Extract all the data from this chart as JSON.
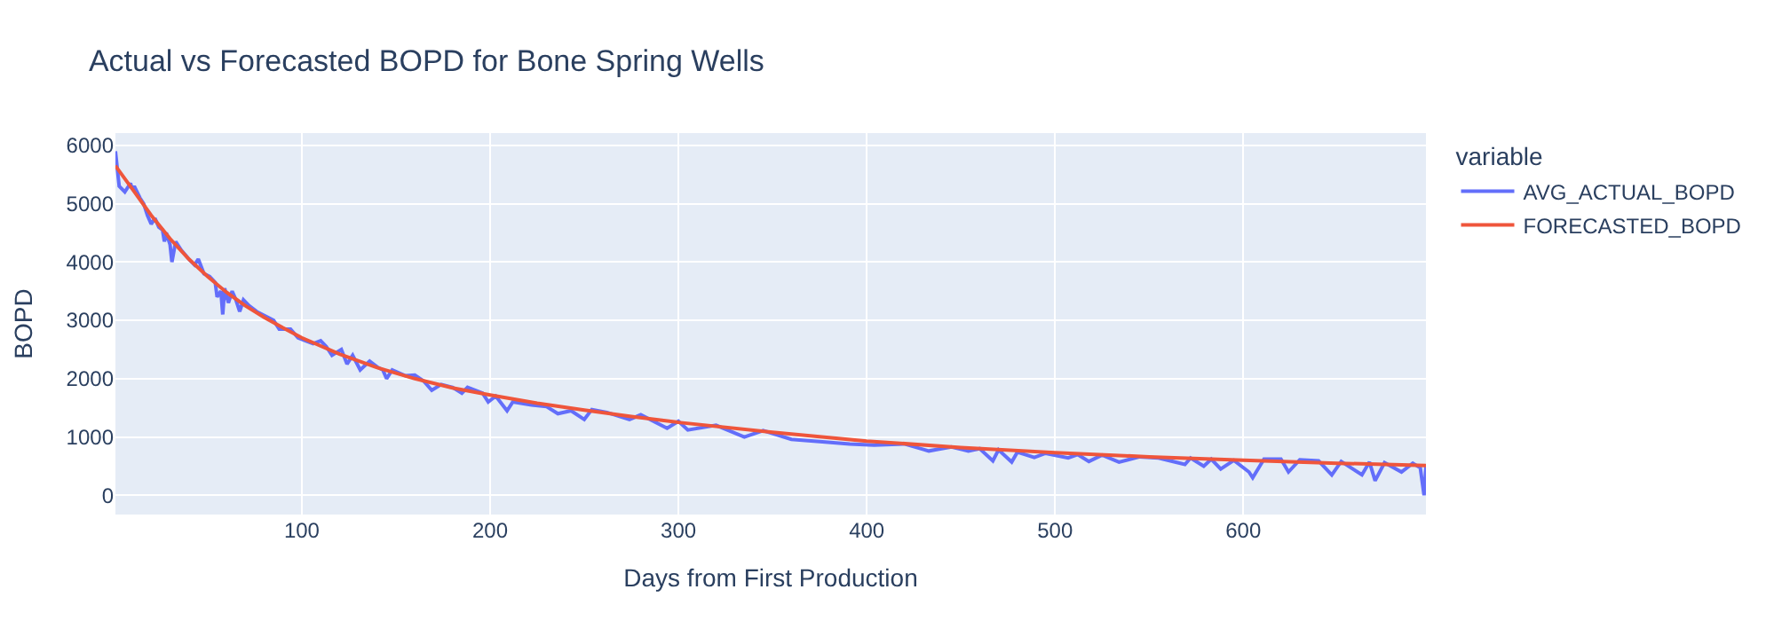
{
  "chart_data": {
    "type": "line",
    "title": "Actual vs Forecasted BOPD for Bone Spring Wells",
    "xlabel": "Days from First Production",
    "ylabel": "BOPD",
    "legend_title": "variable",
    "series": [
      {
        "name": "AVG_ACTUAL_BOPD",
        "color": "#636efa",
        "x": [
          1,
          3,
          6,
          9,
          10,
          11,
          14,
          16,
          18,
          20,
          22,
          24,
          26,
          27,
          28,
          30,
          31,
          33,
          36,
          40,
          43,
          45,
          48,
          51,
          54,
          55,
          57,
          58,
          59,
          61,
          63,
          65,
          67,
          69,
          72,
          76,
          79,
          85,
          88,
          94,
          98,
          102,
          106,
          110,
          113,
          116,
          121,
          124,
          127,
          131,
          136,
          140,
          143,
          145,
          148,
          155,
          160,
          165,
          169,
          174,
          180,
          185,
          188,
          196,
          199,
          203,
          209,
          212,
          222,
          230,
          236,
          243,
          250,
          254,
          262,
          274,
          280,
          294,
          300,
          305,
          320,
          335,
          345,
          360,
          375,
          391,
          404,
          420,
          433,
          445,
          454,
          460,
          467,
          470,
          477,
          480,
          489,
          495,
          507,
          512,
          518,
          525,
          534,
          545,
          555,
          569,
          572,
          579,
          583,
          588,
          595,
          603,
          605,
          611,
          620,
          624,
          630,
          640,
          647,
          652,
          663,
          667,
          670,
          675,
          684,
          690,
          694,
          696,
          697
        ],
        "values": [
          5900,
          5300,
          5200,
          5350,
          5250,
          5300,
          5100,
          5000,
          4800,
          4650,
          4750,
          4600,
          4550,
          4350,
          4500,
          4300,
          4000,
          4350,
          4200,
          4050,
          3950,
          4050,
          3800,
          3750,
          3650,
          3400,
          3500,
          3100,
          3550,
          3300,
          3500,
          3350,
          3150,
          3350,
          3250,
          3150,
          3100,
          3000,
          2850,
          2850,
          2700,
          2650,
          2600,
          2650,
          2550,
          2400,
          2500,
          2250,
          2400,
          2150,
          2300,
          2200,
          2150,
          2000,
          2150,
          2050,
          2060,
          1950,
          1800,
          1900,
          1850,
          1750,
          1850,
          1750,
          1600,
          1700,
          1450,
          1600,
          1550,
          1520,
          1400,
          1450,
          1300,
          1470,
          1420,
          1300,
          1380,
          1150,
          1270,
          1120,
          1200,
          1000,
          1110,
          960,
          920,
          880,
          860,
          880,
          760,
          830,
          760,
          800,
          590,
          780,
          570,
          740,
          650,
          720,
          640,
          700,
          580,
          690,
          570,
          660,
          640,
          530,
          640,
          500,
          620,
          450,
          600,
          400,
          300,
          620,
          620,
          400,
          610,
          590,
          350,
          580,
          350,
          570,
          250,
          560,
          400,
          550,
          470,
          0,
          500
        ]
      },
      {
        "name": "FORECASTED_BOPD",
        "color": "#ef553b",
        "x": [
          1,
          10,
          20,
          30,
          40,
          50,
          60,
          70,
          80,
          90,
          100,
          120,
          140,
          160,
          180,
          200,
          225,
          250,
          275,
          300,
          350,
          400,
          450,
          500,
          550,
          600,
          650,
          697
        ],
        "values": [
          5650,
          5250,
          4800,
          4400,
          4050,
          3750,
          3480,
          3250,
          3050,
          2870,
          2700,
          2420,
          2190,
          2000,
          1840,
          1720,
          1580,
          1460,
          1350,
          1250,
          1080,
          930,
          820,
          730,
          660,
          600,
          550,
          510
        ]
      }
    ],
    "xlim": [
      1,
      697
    ],
    "xticks": [
      100,
      200,
      300,
      400,
      500,
      600
    ],
    "ylim": [
      -330,
      6210
    ],
    "yticks": [
      0,
      1000,
      2000,
      3000,
      4000,
      5000,
      6000
    ],
    "grid": true,
    "legend": "top right",
    "marker": "none",
    "line_style": "solid"
  }
}
